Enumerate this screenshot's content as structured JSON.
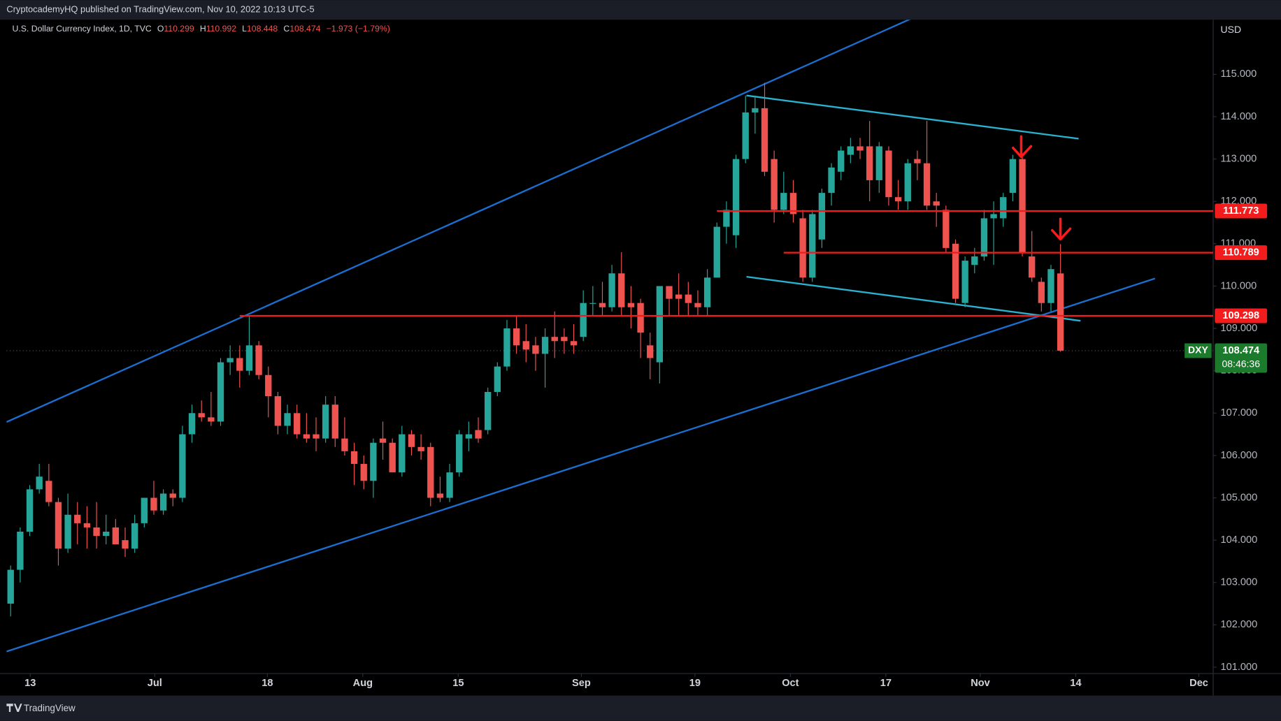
{
  "header": {
    "publisher": "CryptocademyHQ published on TradingView.com, Nov 10, 2022 10:13 UTC-5",
    "brand": "TradingView"
  },
  "chart_data": {
    "type": "candlestick",
    "symbol": "U.S. Dollar Currency Index, 1D, TVC",
    "legend_labels": {
      "open": "O",
      "high": "H",
      "low": "L",
      "close": "C"
    },
    "change": "−1.973 (−1.79%)",
    "currency": "USD",
    "symbol_short": "DXY",
    "countdown": "08:46:36",
    "up_color": "#26a69a",
    "down_color": "#ef5350",
    "categories": [
      null,
      null,
      null,
      null,
      null,
      null,
      null,
      null,
      null,
      null,
      null,
      null,
      null,
      null,
      null,
      null,
      null,
      null,
      null,
      null,
      null,
      null,
      null,
      null,
      null,
      null,
      null,
      null,
      null,
      null,
      null,
      null,
      null,
      null,
      null,
      null,
      null,
      null,
      null,
      null,
      null,
      null,
      null,
      null,
      null,
      null,
      null,
      null,
      null,
      null,
      null,
      null,
      null,
      null,
      null,
      null,
      null,
      null,
      null,
      null,
      null,
      null,
      null,
      null,
      null,
      null,
      null,
      null,
      null,
      null,
      null,
      null,
      null,
      null,
      null,
      null,
      null,
      null,
      null,
      null,
      null,
      null,
      null,
      null,
      null,
      null,
      null,
      null,
      null,
      null,
      null,
      null,
      null,
      null,
      null,
      null,
      null,
      null,
      null,
      null,
      null,
      null,
      null,
      null,
      null,
      null,
      null,
      null,
      null,
      null,
      null
    ],
    "open": [
      102.5,
      103.3,
      104.2,
      105.2,
      105.4,
      104.9,
      103.8,
      104.6,
      104.4,
      104.3,
      104.1,
      104.3,
      104.0,
      103.8,
      104.4,
      105.0,
      104.7,
      105.1,
      105.0,
      106.5,
      107.0,
      106.9,
      106.8,
      108.2,
      108.3,
      108.0,
      108.6,
      107.9,
      107.4,
      106.7,
      107.0,
      106.5,
      106.5,
      106.4,
      107.2,
      106.4,
      106.1,
      105.8,
      105.4,
      106.4,
      106.3,
      105.6,
      106.5,
      106.2,
      106.2,
      105.1,
      105.0,
      105.6,
      106.4,
      106.6,
      106.6,
      107.5,
      108.1,
      109.0,
      108.7,
      108.6,
      108.4,
      108.8,
      108.8,
      108.7,
      108.8,
      109.6,
      109.6,
      109.5,
      110.3,
      109.6,
      109.6,
      108.6,
      108.2,
      110.0,
      109.8,
      109.8,
      109.6,
      109.5,
      110.2,
      111.4,
      111.2,
      113.0,
      114.1,
      114.2,
      113.0,
      111.8,
      112.2,
      111.6,
      110.2,
      111.1,
      112.2,
      112.7,
      113.1,
      113.3,
      113.3,
      112.5,
      113.2,
      112.1,
      112.0,
      113.0,
      112.9,
      112.0,
      111.8,
      111.0,
      109.6,
      110.5,
      110.7,
      111.6,
      111.6,
      112.2,
      113.0,
      110.7,
      110.1,
      109.6,
      110.299
    ],
    "high": [
      103.4,
      104.3,
      105.3,
      105.8,
      105.8,
      105.0,
      105.1,
      104.9,
      104.8,
      104.9,
      104.6,
      104.5,
      104.3,
      104.6,
      105.0,
      105.4,
      105.2,
      105.2,
      106.7,
      107.2,
      107.3,
      107.5,
      108.3,
      108.6,
      108.6,
      109.3,
      108.7,
      108.1,
      107.5,
      107.2,
      107.2,
      107.0,
      106.9,
      107.4,
      107.4,
      106.9,
      106.3,
      106.0,
      106.4,
      106.8,
      106.4,
      106.7,
      106.6,
      106.5,
      106.3,
      105.5,
      105.8,
      106.6,
      106.8,
      106.9,
      107.6,
      108.2,
      109.2,
      109.3,
      109.1,
      108.8,
      109.0,
      109.4,
      109.0,
      109.1,
      109.9,
      110.0,
      110.1,
      110.5,
      110.8,
      110.0,
      109.7,
      108.9,
      110.0,
      110.0,
      110.3,
      110.1,
      109.9,
      110.4,
      111.5,
      112.0,
      113.1,
      114.5,
      114.5,
      114.8,
      113.2,
      112.7,
      112.5,
      111.8,
      111.8,
      112.3,
      112.9,
      113.3,
      113.5,
      113.5,
      113.9,
      113.4,
      113.3,
      112.5,
      113.0,
      113.2,
      113.9,
      112.2,
      111.9,
      111.1,
      110.7,
      110.9,
      111.8,
      112.0,
      112.2,
      113.1,
      113.1,
      111.3,
      110.2,
      110.5,
      110.992
    ],
    "low": [
      102.2,
      103.0,
      104.1,
      105.1,
      104.8,
      103.4,
      103.7,
      103.9,
      103.8,
      103.8,
      103.9,
      103.9,
      103.6,
      103.7,
      104.3,
      104.6,
      104.6,
      104.8,
      104.9,
      106.3,
      106.8,
      106.7,
      106.7,
      107.9,
      107.6,
      107.9,
      107.8,
      106.9,
      106.5,
      106.5,
      106.4,
      106.3,
      106.1,
      106.3,
      106.2,
      106.0,
      105.3,
      105.2,
      105.0,
      105.9,
      105.6,
      105.5,
      106.0,
      105.9,
      104.8,
      104.9,
      104.9,
      105.5,
      106.1,
      106.3,
      106.5,
      107.4,
      108.0,
      108.4,
      108.2,
      108.0,
      107.6,
      108.3,
      108.4,
      108.4,
      108.7,
      109.3,
      109.3,
      109.4,
      109.3,
      109.0,
      108.3,
      107.8,
      107.7,
      109.3,
      109.3,
      109.3,
      109.3,
      109.3,
      110.2,
      111.0,
      110.9,
      112.9,
      113.6,
      112.6,
      111.5,
      111.7,
      111.5,
      110.1,
      110.1,
      110.9,
      111.9,
      112.5,
      112.9,
      113.0,
      112.0,
      112.2,
      111.9,
      111.8,
      111.8,
      112.5,
      111.8,
      111.4,
      110.8,
      109.6,
      109.5,
      110.3,
      110.6,
      110.5,
      111.4,
      112.0,
      110.7,
      110.1,
      109.4,
      109.4,
      108.448
    ],
    "close": [
      103.3,
      104.2,
      105.2,
      105.5,
      104.9,
      103.8,
      104.6,
      104.4,
      104.3,
      104.1,
      104.2,
      103.9,
      103.8,
      104.4,
      105.0,
      104.7,
      105.1,
      105.0,
      106.5,
      107.0,
      106.9,
      106.8,
      108.2,
      108.3,
      108.0,
      108.6,
      107.9,
      107.4,
      106.7,
      107.0,
      106.5,
      106.4,
      106.4,
      107.2,
      106.4,
      106.1,
      105.8,
      105.4,
      106.3,
      106.3,
      105.6,
      106.5,
      106.2,
      106.1,
      105.0,
      105.0,
      105.6,
      106.5,
      106.5,
      106.4,
      107.5,
      108.1,
      109.0,
      108.6,
      108.5,
      108.4,
      108.8,
      108.7,
      108.7,
      108.6,
      109.6,
      109.6,
      109.5,
      110.3,
      109.5,
      109.5,
      108.9,
      108.3,
      110.0,
      109.7,
      109.7,
      109.6,
      109.5,
      110.2,
      111.4,
      111.8,
      113.0,
      114.1,
      114.2,
      112.7,
      111.8,
      112.2,
      111.7,
      110.2,
      111.7,
      112.2,
      112.8,
      113.2,
      113.3,
      113.2,
      112.5,
      113.3,
      112.1,
      112.0,
      112.9,
      112.9,
      111.9,
      111.9,
      110.9,
      109.7,
      110.6,
      110.7,
      111.6,
      111.7,
      112.1,
      113.0,
      110.8,
      110.2,
      109.6,
      110.4,
      108.474
    ],
    "xlim": [
      -0.43,
      126.0
    ],
    "xticks": [
      {
        "value": 2.05,
        "label": "13"
      },
      {
        "value": 15.1,
        "label": "Jul"
      },
      {
        "value": 26.9,
        "label": "18"
      },
      {
        "value": 36.9,
        "label": "Aug"
      },
      {
        "value": 46.9,
        "label": "15"
      },
      {
        "value": 59.8,
        "label": "Sep"
      },
      {
        "value": 71.7,
        "label": "19"
      },
      {
        "value": 81.7,
        "label": "Oct"
      },
      {
        "value": 91.7,
        "label": "17"
      },
      {
        "value": 101.6,
        "label": "Nov"
      },
      {
        "value": 111.6,
        "label": "14"
      },
      {
        "value": 124.5,
        "label": "Dec"
      }
    ],
    "ylim": [
      100.85,
      116.29
    ],
    "yticks": [
      {
        "value": 101,
        "label": "101.000"
      },
      {
        "value": 102,
        "label": "102.000"
      },
      {
        "value": 103,
        "label": "103.000"
      },
      {
        "value": 104,
        "label": "104.000"
      },
      {
        "value": 105,
        "label": "105.000"
      },
      {
        "value": 106,
        "label": "106.000"
      },
      {
        "value": 107,
        "label": "107.000"
      },
      {
        "value": 108,
        "label": "108.000"
      },
      {
        "value": 109,
        "label": "109.000"
      },
      {
        "value": 110,
        "label": "110.000"
      },
      {
        "value": 111,
        "label": "111.000"
      },
      {
        "value": 112,
        "label": "112.000"
      },
      {
        "value": 113,
        "label": "113.000"
      },
      {
        "value": 114,
        "label": "114.000"
      },
      {
        "value": 115,
        "label": "115.000"
      }
    ],
    "levels": [
      {
        "value": 111.773,
        "from": 74,
        "color": "#f21c1c"
      },
      {
        "value": 110.789,
        "from": 81,
        "color": "#f21c1c"
      },
      {
        "value": 109.298,
        "from": 24,
        "color": "#f21c1c"
      }
    ],
    "trend_lines": [
      {
        "points": [
          [
            -0.43,
            106.79
          ],
          [
            94.9,
            116.37
          ]
        ],
        "color": "#1a6fd0"
      },
      {
        "points": [
          [
            -0.43,
            101.37
          ],
          [
            119.9,
            110.18
          ]
        ],
        "color": "#1a6fd0"
      },
      {
        "points": [
          [
            77.1,
            114.5
          ],
          [
            111.9,
            113.48
          ]
        ],
        "color": "#29b3d1"
      },
      {
        "points": [
          [
            77.1,
            110.22
          ],
          [
            112.1,
            109.18
          ]
        ],
        "color": "#29b3d1"
      }
    ]
  }
}
